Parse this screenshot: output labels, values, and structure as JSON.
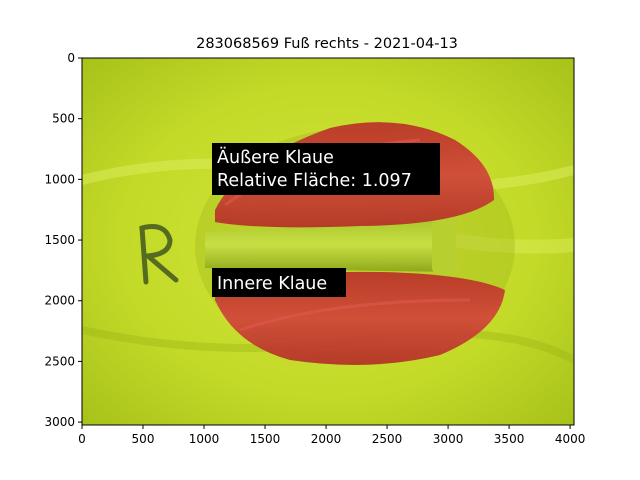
{
  "figure": {
    "title": "283068569 Fuß rechts - 2021-04-13"
  },
  "image": {
    "width": 4032,
    "height": 3024,
    "subject": "cow hoof sole photo on green background with red segmentation overlay"
  },
  "axes": {
    "xlim": [
      0,
      4032
    ],
    "ylim": [
      3024,
      0
    ],
    "x_ticks": [
      0,
      500,
      1000,
      1500,
      2000,
      2500,
      3000,
      3500,
      4000
    ],
    "y_ticks": [
      0,
      500,
      1000,
      1500,
      2000,
      2500,
      3000
    ]
  },
  "annotations": {
    "outer_line1": "Äußere Klaue",
    "outer_line2": "Relative Fläche: 1.097",
    "inner": "Innere Klaue"
  },
  "colors": {
    "background_green": "#c5dc2a",
    "overlay_red": "#cc3a30",
    "label_box": "#000000"
  }
}
